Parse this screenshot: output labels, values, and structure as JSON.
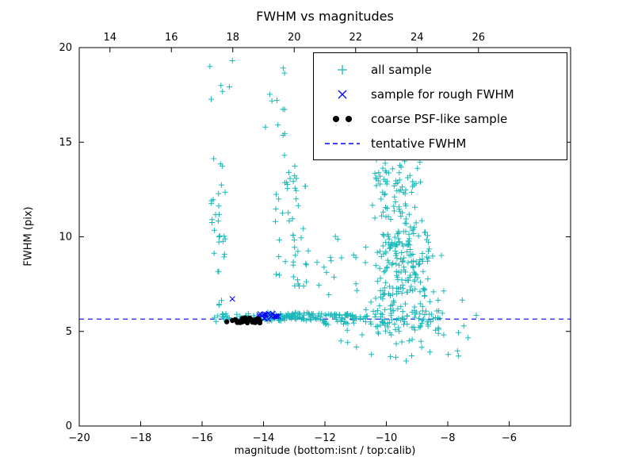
{
  "chart_data": {
    "type": "scatter",
    "title": "FWHM vs magnitudes",
    "xlabel": "magnitude (bottom:isnt / top:calib)",
    "ylabel": "FWHM (pix)",
    "xlim": [
      -20,
      -4
    ],
    "ylim": [
      0,
      20
    ],
    "top_axis_offset": 33,
    "grid": false,
    "legend_position": "upper right",
    "x_ticks_bottom": {
      "values": [
        -20,
        -18,
        -16,
        -14,
        -12,
        -10,
        -8,
        -6
      ],
      "labels": [
        "−20",
        "−18",
        "−16",
        "−14",
        "−12",
        "−10",
        "−8",
        "−6"
      ]
    },
    "x_ticks_top": {
      "values": [
        14,
        16,
        18,
        20,
        22,
        24,
        26
      ],
      "labels": [
        "14",
        "16",
        "18",
        "20",
        "22",
        "24",
        "26"
      ]
    },
    "y_ticks": {
      "values": [
        0,
        5,
        10,
        15,
        20
      ],
      "labels": [
        "0",
        "5",
        "10",
        "15",
        "20"
      ]
    },
    "tentative_fwhm": 5.65,
    "seed": 42,
    "series": [
      {
        "name": "all sample",
        "marker": "plus",
        "color": "#1ab8b8",
        "clusters": [
          {
            "dist": "uniform",
            "x": [
              -15.6,
              -14.1
            ],
            "y": [
              5.5,
              6.0
            ],
            "n": 30
          },
          {
            "dist": "uniform",
            "x": [
              -14.1,
              -12.1
            ],
            "y": [
              5.55,
              6.0
            ],
            "n": 95
          },
          {
            "dist": "uniform",
            "x": [
              -12.1,
              -10.6
            ],
            "y": [
              5.35,
              5.95
            ],
            "n": 55
          },
          {
            "dist": "uniform",
            "x": [
              -10.6,
              -8.3
            ],
            "y": [
              5.2,
              6.1
            ],
            "n": 40
          },
          {
            "dist": "uniform",
            "x": [
              -15.7,
              -15.2
            ],
            "y": [
              6.1,
              14.3
            ],
            "n": 30
          },
          {
            "dist": "uniform",
            "x": [
              -15.75,
              -15.0
            ],
            "y": [
              15.0,
              19.4
            ],
            "n": 6
          },
          {
            "dist": "uniform",
            "x": [
              -13.65,
              -12.6
            ],
            "y": [
              7.4,
              13.9
            ],
            "n": 48
          },
          {
            "dist": "uniform",
            "x": [
              -14.05,
              -13.3
            ],
            "y": [
              14.2,
              19.2
            ],
            "n": 12
          },
          {
            "dist": "uniform",
            "x": [
              -12.55,
              -10.9
            ],
            "y": [
              6.2,
              10.5
            ],
            "n": 16
          },
          {
            "dist": "gauss",
            "cx": -9.6,
            "cy": 8.8,
            "sx": 0.5,
            "sy": 2.3,
            "clipx": [
              -11.1,
              -7.9
            ],
            "clipy": [
              4.4,
              15.5
            ],
            "n": 270
          },
          {
            "dist": "uniform",
            "x": [
              -10.5,
              -9.2
            ],
            "y": [
              12.6,
              14.4
            ],
            "n": 20
          },
          {
            "dist": "uniform",
            "x": [
              -11.6,
              -7.6
            ],
            "y": [
              3.4,
              5.1
            ],
            "n": 22
          },
          {
            "dist": "uniform",
            "x": [
              -8.5,
              -7.0
            ],
            "y": [
              4.6,
              6.8
            ],
            "n": 8
          },
          {
            "dist": "uniform",
            "x": [
              -8.9,
              -8.1
            ],
            "y": [
              4.7,
              7.2
            ],
            "n": 15
          }
        ]
      },
      {
        "name": "sample for rough FWHM",
        "marker": "x",
        "color": "#0000ff",
        "clusters": [
          {
            "dist": "uniform",
            "x": [
              -14.15,
              -13.5
            ],
            "y": [
              5.65,
              5.95
            ],
            "n": 20
          },
          {
            "dist": "uniform",
            "x": [
              -15.03,
              -14.98
            ],
            "y": [
              6.68,
              6.72
            ],
            "n": 1
          }
        ]
      },
      {
        "name": "coarse PSF-like sample",
        "marker": "dot",
        "color": "#000000",
        "clusters": [
          {
            "dist": "uniform",
            "x": [
              -15.2,
              -14.1
            ],
            "y": [
              5.45,
              5.72
            ],
            "n": 34
          }
        ]
      },
      {
        "name": "tentative FWHM",
        "marker": "dashed-line",
        "color": "#0000ff",
        "y": 5.65
      }
    ]
  }
}
